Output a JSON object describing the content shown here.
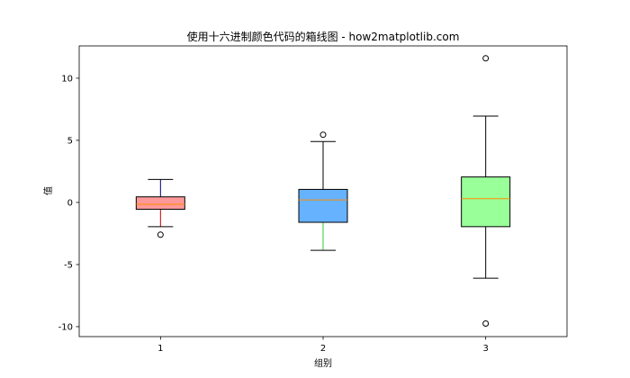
{
  "chart_data": {
    "type": "box",
    "title": "使用十六进制颜色代码的箱线图 - how2matplotlib.com",
    "xlabel": "组别",
    "ylabel": "值",
    "categories": [
      "1",
      "2",
      "3"
    ],
    "ylim": [
      -10.8,
      12.6
    ],
    "yticks": [
      -10,
      -5,
      0,
      5,
      10
    ],
    "ytick_labels": [
      "-10",
      "-5",
      "0",
      "5",
      "10"
    ],
    "grid": false,
    "boxes": [
      {
        "label": "1",
        "whisker_low": -1.95,
        "q1": -0.55,
        "median": -0.15,
        "q3": 0.45,
        "whisker_high": 1.85,
        "outliers": [
          -2.6
        ],
        "face_color": "#FF9999",
        "lower_whisker_color": "#CC0000",
        "upper_whisker_color": "#000080",
        "median_color": "#FF8C00"
      },
      {
        "label": "2",
        "whisker_low": -3.85,
        "q1": -1.6,
        "median": 0.2,
        "q3": 1.05,
        "whisker_high": 4.9,
        "outliers": [
          5.45
        ],
        "face_color": "#66B2FF",
        "lower_whisker_color": "#33CC33",
        "upper_whisker_color": "#000000",
        "median_color": "#FF8C00"
      },
      {
        "label": "3",
        "whisker_low": -6.1,
        "q1": -1.95,
        "median": 0.3,
        "q3": 2.05,
        "whisker_high": 6.95,
        "outliers": [
          11.6,
          -9.75
        ],
        "face_color": "#99FF99",
        "lower_whisker_color": "#000000",
        "upper_whisker_color": "#000000",
        "median_color": "#FF8C00"
      }
    ]
  }
}
